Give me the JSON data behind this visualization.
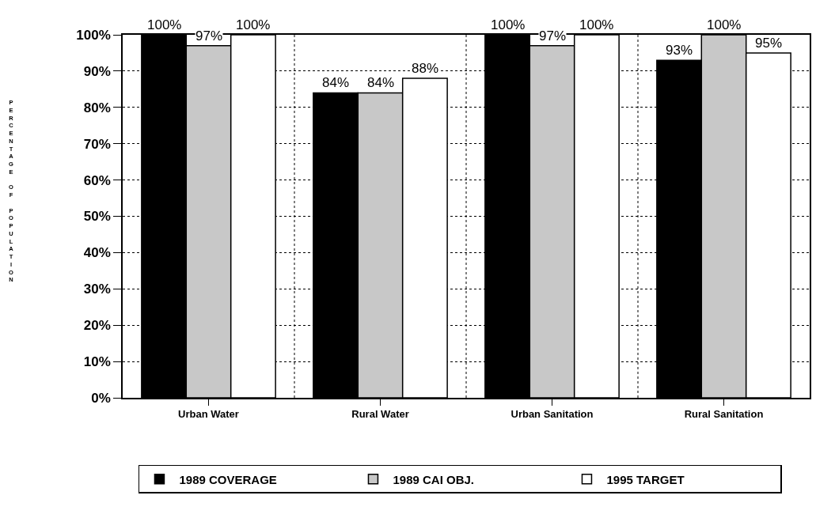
{
  "chart_data": {
    "type": "bar",
    "ylabel": "PERCENTAGE OF POPULATION",
    "categories": [
      "Urban Water",
      "Rural Water",
      "Urban Sanitation",
      "Rural Sanitation"
    ],
    "series": [
      {
        "name": "1989 COVERAGE",
        "color": "#000000",
        "values": [
          100,
          84,
          100,
          93
        ],
        "value_labels": [
          "100%",
          "84%",
          "100%",
          "93%"
        ]
      },
      {
        "name": "1989 CAI OBJ.",
        "color": "#c8c8c8",
        "values": [
          97,
          84,
          97,
          100
        ],
        "value_labels": [
          "97%",
          "84%",
          "97%",
          "100%"
        ]
      },
      {
        "name": "1995 TARGET",
        "color": "#ffffff",
        "values": [
          100,
          88,
          100,
          95
        ],
        "value_labels": [
          "100%",
          "88%",
          "100%",
          "95%"
        ]
      }
    ],
    "ylim": [
      0,
      100
    ],
    "yticks": [
      {
        "value": 0,
        "label": "0%"
      },
      {
        "value": 10,
        "label": "10%"
      },
      {
        "value": 20,
        "label": "20%"
      },
      {
        "value": 30,
        "label": "30%"
      },
      {
        "value": 40,
        "label": "40%"
      },
      {
        "value": 50,
        "label": "50%"
      },
      {
        "value": 60,
        "label": "60%"
      },
      {
        "value": 70,
        "label": "70%"
      },
      {
        "value": 80,
        "label": "80%"
      },
      {
        "value": 90,
        "label": "90%"
      },
      {
        "value": 100,
        "label": "100%"
      }
    ],
    "grid": true,
    "legend": "bottom"
  }
}
